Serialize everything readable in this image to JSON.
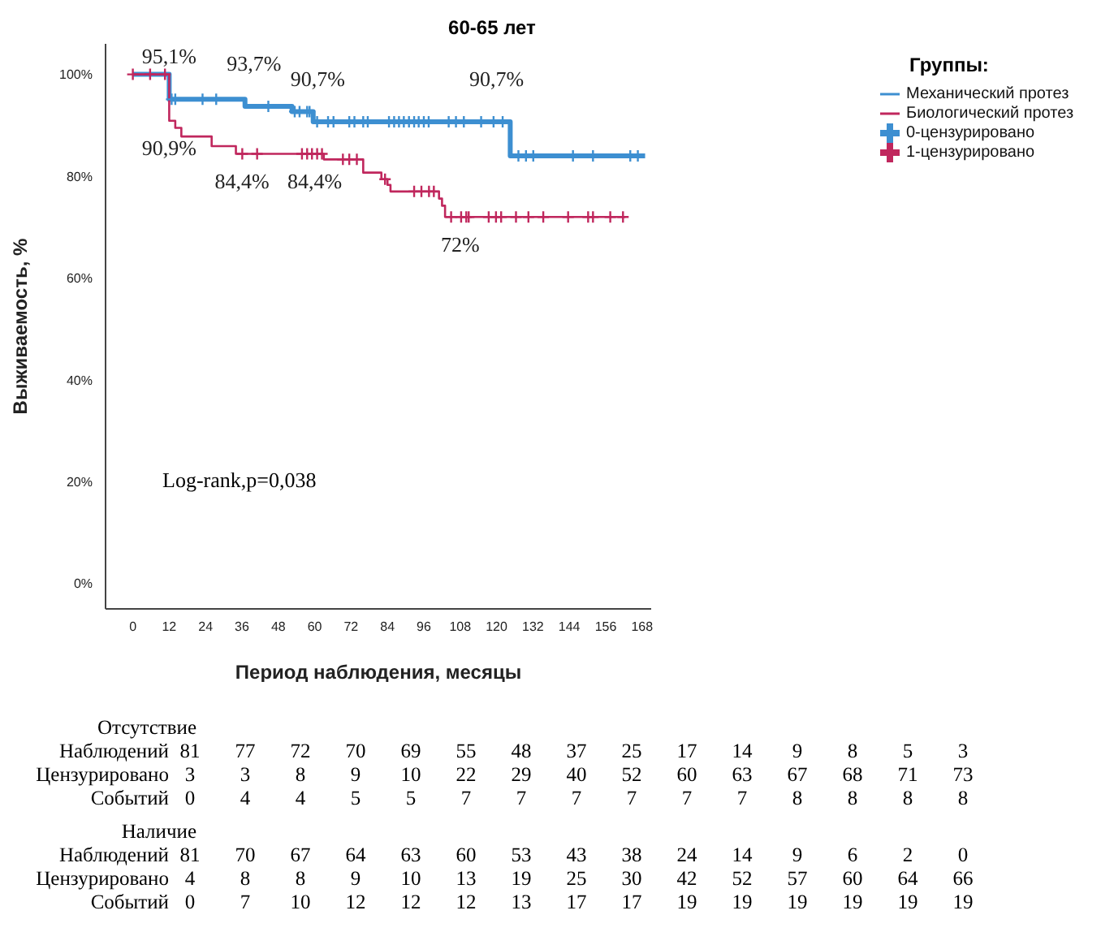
{
  "chart_data": {
    "type": "step",
    "title": "60-65 лет",
    "xlabel": "Период наблюдения, месяцы",
    "ylabel": "Выживаемость, %",
    "legend_title": "Группы:",
    "legend": "top right",
    "xlim": [
      -9,
      171
    ],
    "xticks": [
      0,
      12,
      24,
      36,
      48,
      60,
      72,
      84,
      96,
      108,
      120,
      132,
      144,
      156,
      168
    ],
    "ylim": [
      -5,
      106
    ],
    "yticks": [
      {
        "value": 0,
        "label": "0%"
      },
      {
        "value": 20,
        "label": "20%"
      },
      {
        "value": 40,
        "label": "40%"
      },
      {
        "value": 60,
        "label": "60%"
      },
      {
        "value": 80,
        "label": "80%"
      },
      {
        "value": 100,
        "label": "100%"
      }
    ],
    "series": [
      {
        "name": "Механический протез",
        "color": "#3d8fd1",
        "x": [
          0,
          12,
          37,
          52.5,
          59.5,
          124.5,
          169
        ],
        "values": [
          100,
          95.1,
          93.7,
          92.7,
          90.7,
          84,
          84
        ]
      },
      {
        "name": "Биологический протез",
        "color": "#c0275d",
        "x": [
          0,
          12,
          14,
          16,
          26,
          34,
          63,
          76,
          82,
          84,
          85,
          101,
          102,
          103,
          162.5
        ],
        "values": [
          100,
          90.9,
          89.5,
          87.8,
          85.9,
          84.4,
          83.3,
          80.7,
          79.4,
          78.3,
          77,
          75.6,
          74.2,
          72,
          72
        ]
      },
      {
        "name": "0-цензурировано",
        "type": "scatter",
        "marker": "cross",
        "color": "#3d8fd1",
        "x": [
          12.8,
          14,
          23,
          27.5,
          44.7,
          53.4,
          55,
          57.5,
          58.3,
          60.8,
          64.4,
          66.2,
          71.4,
          73.1,
          76,
          77.5,
          84.5,
          86.2,
          87.8,
          89.4,
          91.1,
          92.8,
          94.3,
          96,
          97.6,
          104.2,
          106.6,
          109.2,
          114.9,
          119,
          122,
          127.2,
          129.7,
          132.1,
          145.2,
          151.8,
          164.1,
          166.6
        ],
        "values": [
          95.1,
          95.1,
          95.1,
          95.1,
          93.7,
          92.7,
          92.7,
          92.7,
          92.7,
          90.7,
          90.7,
          90.7,
          90.7,
          90.7,
          90.7,
          90.7,
          90.7,
          90.7,
          90.7,
          90.7,
          90.7,
          90.7,
          90.7,
          90.7,
          90.7,
          90.7,
          90.7,
          90.7,
          90.7,
          90.7,
          90.7,
          84,
          84,
          84,
          84,
          84,
          84,
          84
        ]
      },
      {
        "name": "1-цензурировано",
        "type": "scatter",
        "marker": "cross",
        "color": "#c0275d",
        "x": [
          0,
          5.7,
          10.6,
          36.1,
          41,
          55.8,
          57.5,
          59.1,
          60.8,
          62.4,
          69.3,
          71.4,
          73.9,
          83.2,
          92.8,
          95.2,
          97.7,
          99.3,
          105,
          108.3,
          110,
          110.8,
          117.4,
          119.8,
          121.5,
          126.4,
          130.5,
          135.4,
          143.6,
          150.2,
          151.8,
          157.5,
          161.7
        ],
        "values": [
          100,
          100,
          100,
          84.4,
          84.4,
          84.4,
          84.4,
          84.4,
          84.4,
          84.4,
          83.3,
          83.3,
          83.3,
          79.4,
          77,
          77,
          77,
          77,
          72,
          72,
          72,
          72,
          72,
          72,
          72,
          72,
          72,
          72,
          72,
          72,
          72,
          72,
          72
        ]
      }
    ],
    "annotations": [
      {
        "text": "95,1%",
        "x": 12,
        "y": 95.1
      },
      {
        "text": "93,7%",
        "x": 40,
        "y": 93.7
      },
      {
        "text": "90,7%",
        "x": 61,
        "y": 90.7
      },
      {
        "text": "90,7%",
        "x": 120,
        "y": 90.7
      },
      {
        "text": "90,9%",
        "x": 12,
        "y": 90.9
      },
      {
        "text": "84,4%",
        "x": 36,
        "y": 84.4
      },
      {
        "text": "84,4%",
        "x": 60,
        "y": 84.4
      },
      {
        "text": "72%",
        "x": 108,
        "y": 72
      },
      "Log-rank,p=0,038",
      "Отсутствие",
      "Наблюдений 81 77 72 70 69 55 48 37 25 17 14 9 8 5 3",
      "Цензурировано 3 3 8 9 10 22 29 40 52 60 63 67 68 71 73",
      "Событий 0 4 4 5 5 7 7 7 7 7 7 8 8 8 8",
      "Наличие",
      "Наблюдений 81 70 67 64 63 60 53 43 38 24 14 9 6 2 0",
      "Цензурировано 4 8 8 9 10 13 19 25 30 42 52 57 60 64 66",
      "Событий 0 7 10 12 12 12 13 17 17 19 19 19 19 19 19"
    ]
  }
}
